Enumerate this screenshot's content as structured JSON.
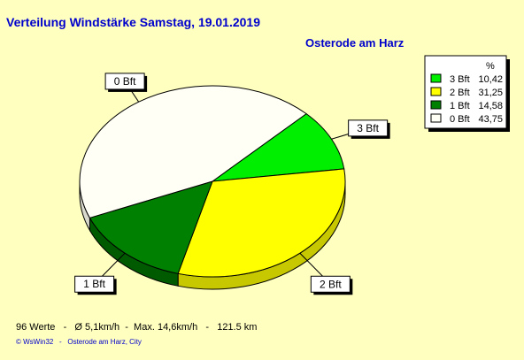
{
  "colors": {
    "background": "#FFFFC0",
    "title": "#0000CC",
    "footer_credit": "#0000CC",
    "text": "#000000"
  },
  "header": {
    "title": "Verteilung Windstärke  Samstag, 19.01.2019",
    "location": "Osterode am Harz"
  },
  "footer": {
    "summary": "96 Werte   -   Ø 5,1km/h  -  Max. 14,6km/h   -   121.5 km",
    "credit": "© WsWin32   -   Osterode am Harz, City"
  },
  "chart_data": {
    "type": "pie",
    "style": "3d",
    "title": "Verteilung Windstärke  Samstag, 19.01.2019",
    "legend": {
      "position": "top-right",
      "header": "%",
      "entries": [
        {
          "label": "3 Bft",
          "value_text": "10,42"
        },
        {
          "label": "2 Bft",
          "value_text": "31,25"
        },
        {
          "label": "1 Bft",
          "value_text": "14,58"
        },
        {
          "label": "0 Bft",
          "value_text": "43,75"
        }
      ]
    },
    "slices": [
      {
        "label": "3 Bft",
        "value": 10.42,
        "color": "#00EE00",
        "side_color": "#00B400"
      },
      {
        "label": "2 Bft",
        "value": 31.25,
        "color": "#FFFF00",
        "side_color": "#C8C800"
      },
      {
        "label": "1 Bft",
        "value": 14.58,
        "color": "#008000",
        "side_color": "#005A00"
      },
      {
        "label": "0 Bft",
        "value": 43.75,
        "color": "#FFFFF5",
        "side_color": "#D8D8CC"
      }
    ]
  }
}
